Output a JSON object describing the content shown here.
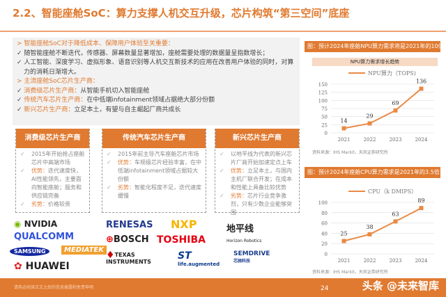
{
  "title": "2.2、智能座舱SoC：算力支撑人机交互升级，芯片构筑“第三空间”底座",
  "intro": {
    "h1": "智能座舱SoC对于降低成本、保障用户体验至关重要：",
    "b1": "随智能座舱不断迭代，传感器、屏幕数量显著增加，座舱需要处理的数据量呈指数增长；",
    "b2": "人工智能、深度学习、虚拟形象、语音识别等人机交互新技术的应用在改善用户体验的同时，对算力的消耗日渐增大。",
    "h2": "主流座舱SoC芯片生产商：",
    "items": [
      {
        "k": "消费级芯片生产商：",
        "v": "从智能手机切入智能座舱"
      },
      {
        "k": "传统汽车芯片生产商：",
        "v": "在中低端infotainment领域占据绝大部分份额"
      },
      {
        "k": "新兴芯片生产商：",
        "v": "立足本土，有望与自主崛起厂商共成长"
      }
    ]
  },
  "cards": [
    {
      "title": "消费级芯片生产商",
      "p1": "2015年开始抢占座舱芯片中高端市场",
      "adv_k": "优势：",
      "adv": "迭代速度快，AI性能领先，主要面向智能座舱；服务和供应链完备",
      "dis_k": "劣势：",
      "dis": "价格较贵"
    },
    {
      "title": "传统汽车芯片生产商",
      "p1": "2015年前主导汽车座舱芯片市场",
      "adv_k": "优势：",
      "adv": "车规级芯片经验丰富，在中低端infotainment领域占据较大份额",
      "dis_k": "劣势：",
      "dis": "智能化程度不足，迭代速度缓慢"
    },
    {
      "title": "新兴芯片生产商",
      "p1": "以地平线为代表的新兴芯片厂商开始加速定点上车",
      "adv_k": "优势：",
      "adv": "立足本土，与国内主机厂联合开发；在成本和性能上具备比较优势",
      "dis_k": "劣势：",
      "dis": "芯片行业竞争激烈，只有少数企业能够突围"
    }
  ],
  "logos": {
    "nvidia": "NVIDIA",
    "qualcomm": "QUALCOMM",
    "samsung": "SAMSUNG",
    "mediatek": "MEDIATEK",
    "huawei": "HUAWEI",
    "renesas": "RENESAS",
    "nxp": "NXP",
    "bosch": "BOSCH",
    "toshiba": "TOSHIBA",
    "ti": "TEXAS INSTRUMENTS",
    "st": "life.augmented",
    "horizon": "地平线",
    "horizon_en": "Horizon Robotics",
    "semidrive": "SEMDRIVE",
    "semidrive_cn": "芯驰科技"
  },
  "chart_data": [
    {
      "type": "line",
      "heading": "图：预计2024年座舱NPU算力需求将是2021年的10倍",
      "title": "NPU算力需求增长趋势",
      "categories": [
        "2021",
        "2022",
        "2023",
        "2024"
      ],
      "series": [
        {
          "name": "NPU算力（TOPS)",
          "values": [
            14,
            29,
            69,
            136
          ]
        }
      ],
      "ylim": [
        0,
        150
      ],
      "yticks": [
        0,
        25,
        50,
        75,
        100,
        125,
        150
      ],
      "legend": "top",
      "color": "#e88a45",
      "source": "资料来源：IHS Markit，天风证券研究所"
    },
    {
      "type": "line",
      "heading": "图：预计2024年座舱CPU算力需求是2021年的3.5倍",
      "categories": [
        "2021",
        "2022",
        "2023",
        "2024"
      ],
      "series": [
        {
          "name": "CPU（k DMIPS）",
          "values": [
            25,
            38,
            63,
            89
          ]
        }
      ],
      "ylim": [
        0,
        100
      ],
      "yticks": [
        0,
        20,
        40,
        60,
        80,
        100
      ],
      "legend": "top",
      "color": "#e88a45",
      "source": "资料来源：IHS Markit，天风证券研究所"
    }
  ],
  "footer": {
    "watermark": "头条 @未来智库",
    "page": "24",
    "left": "请务必阅读正文之后的信息披露和免责申明"
  }
}
